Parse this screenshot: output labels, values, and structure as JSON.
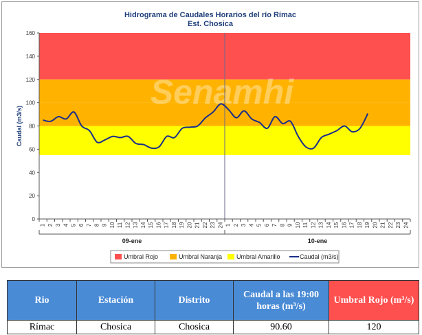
{
  "chart_data": {
    "type": "line",
    "title": "Hidrograma de Caudales Horarios del río Rímac",
    "subtitle": "Est. Chosica",
    "ylabel": "Caudal  (m3/s)",
    "ylim": [
      0,
      160
    ],
    "yticks": [
      0,
      20,
      40,
      60,
      80,
      100,
      120,
      140,
      160
    ],
    "hour_labels": [
      "1",
      "2",
      "3",
      "4",
      "5",
      "6",
      "7",
      "8",
      "9",
      "10",
      "11",
      "12",
      "13",
      "14",
      "15",
      "16",
      "17",
      "18",
      "19",
      "20",
      "21",
      "22",
      "23",
      "24"
    ],
    "days": [
      "09-ene",
      "10-ene"
    ],
    "thresholds": [
      {
        "name": "Umbral Rojo",
        "from": 120,
        "to": 160,
        "color": "#ff5050"
      },
      {
        "name": "Umbral Naranja",
        "from": 100,
        "to": 120,
        "color": "#ffb300"
      },
      {
        "name": "Umbral Amarillo",
        "from": 55,
        "to": 80,
        "color": "#ffff00"
      }
    ],
    "band_between": {
      "from": 80,
      "to": 100,
      "color": "#ffb300"
    },
    "series": [
      {
        "name": "Caudal (m3/s)",
        "color": "#1a2d8a",
        "values": [
          85,
          84,
          88,
          86,
          92,
          80,
          76,
          66,
          68,
          71,
          70,
          71,
          65,
          64,
          61,
          62,
          71,
          70,
          78,
          79,
          80,
          87,
          92,
          99,
          94,
          87,
          93,
          86,
          83,
          78,
          88,
          82,
          84,
          71,
          62,
          61,
          70,
          73,
          76,
          80,
          75,
          78,
          90.6
        ]
      }
    ],
    "legend_position": "bottom",
    "watermark": "Senamhi"
  },
  "table": {
    "headers": [
      "Rio",
      "Estación",
      "Distrito",
      "Caudal a las 19:00 horas (m³/s)",
      "Umbral Rojo (m³/s)"
    ],
    "header_colors": [
      "#4a8bd6",
      "#4a8bd6",
      "#4a8bd6",
      "#4a8bd6",
      "#ff5050"
    ],
    "row": [
      "Rímac",
      "Chosica",
      "Chosica",
      "90.60",
      "120"
    ]
  }
}
